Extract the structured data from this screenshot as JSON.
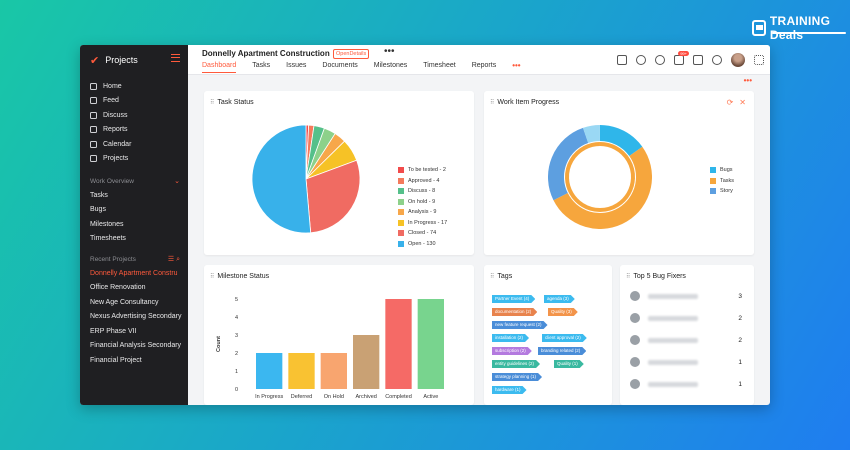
{
  "brand": {
    "name_bold": "TRAINING",
    "name_rest": " Deals"
  },
  "sidebar": {
    "app_title": "Projects",
    "nav": [
      {
        "label": "Home"
      },
      {
        "label": "Feed"
      },
      {
        "label": "Discuss"
      },
      {
        "label": "Reports"
      },
      {
        "label": "Calendar"
      },
      {
        "label": "Projects"
      }
    ],
    "work_overview": {
      "title": "Work Overview",
      "items": [
        "Tasks",
        "Bugs",
        "Milestones",
        "Timesheets"
      ]
    },
    "recent": {
      "title": "Recent Projects",
      "items": [
        "Donnelly Apartment Constru",
        "Office Renovation",
        "New Age Consultancy",
        "Nexus Advertising Secondary",
        "ERP Phase VII",
        "Financial Analysis Secondary",
        "Financial  Project"
      ]
    }
  },
  "header": {
    "project_title": "Donnelly Apartment Construction",
    "badge": "OpenDetails",
    "more": "•••",
    "tabs": [
      "Dashboard",
      "Tasks",
      "Issues",
      "Documents",
      "Milestones",
      "Timesheet",
      "Reports"
    ],
    "tab_more": "•••",
    "notif_count": "99+",
    "page_more": "•••"
  },
  "task_status": {
    "title": "Task Status",
    "legend": [
      {
        "label": "To be tested - 2",
        "value": 2,
        "color": "#f24b4b"
      },
      {
        "label": "Approved - 4",
        "value": 4,
        "color": "#f47a5c"
      },
      {
        "label": "Discuss - 8",
        "value": 8,
        "color": "#55c08a"
      },
      {
        "label": "On hold - 9",
        "value": 9,
        "color": "#8dd18a"
      },
      {
        "label": "Analysis - 9",
        "value": 9,
        "color": "#f7a74a"
      },
      {
        "label": "In Progress - 17",
        "value": 17,
        "color": "#f6c226"
      },
      {
        "label": "Closed - 74",
        "value": 74,
        "color": "#f06b62"
      },
      {
        "label": "Open - 130",
        "value": 130,
        "color": "#38b1ea"
      }
    ]
  },
  "work_item": {
    "title": "Work Item Progress",
    "legend": [
      {
        "label": "Bugs",
        "color": "#2fb6ea"
      },
      {
        "label": "Tasks",
        "color": "#f6a63d"
      },
      {
        "label": "Story",
        "color": "#5d9fe0"
      }
    ]
  },
  "milestone": {
    "title": "Milestone Status",
    "ylabel": "Count",
    "yticks": [
      "5",
      "4",
      "3",
      "2",
      "1",
      "0"
    ]
  },
  "chart_data": {
    "type": "bar",
    "categories": [
      "In Progress",
      "Deferred",
      "On Hold",
      "Archived",
      "Completed",
      "Active"
    ],
    "values": [
      2,
      2,
      2,
      3,
      5,
      5
    ],
    "colors": [
      "#3bb7f0",
      "#f9c232",
      "#f8a56f",
      "#c9a174",
      "#f56a66",
      "#78d48e"
    ],
    "ylabel": "Count",
    "ylim": [
      0,
      5
    ]
  },
  "tags": {
    "title": "Tags",
    "items": [
      {
        "label": "Partner Event (4)",
        "color": "#3cbbef"
      },
      {
        "label": "agenda (3)",
        "color": "#3cbbef"
      },
      {
        "label": "documentation (2)",
        "color": "#e8834d"
      },
      {
        "label": "Quality (3)",
        "color": "#f3944a"
      },
      {
        "label": "new feature request (2)",
        "color": "#4a8dd8"
      },
      {
        "label": "installation (2)",
        "color": "#3cbbef"
      },
      {
        "label": "client approval (2)",
        "color": "#3cbbef"
      },
      {
        "label": "subscription (2)",
        "color": "#b47adf"
      },
      {
        "label": "branding related (2)",
        "color": "#4a8dd8"
      },
      {
        "label": "entity guidelines (2)",
        "color": "#3ab9a0"
      },
      {
        "label": "Quality (1)",
        "color": "#3ab9a0"
      },
      {
        "label": "strategy planning (1)",
        "color": "#4a8dd8"
      },
      {
        "label": "hardware (1)",
        "color": "#3cbbef"
      }
    ]
  },
  "bug_fixers": {
    "title": "Top 5 Bug Fixers",
    "rows": [
      {
        "count": "3"
      },
      {
        "count": "2"
      },
      {
        "count": "2"
      },
      {
        "count": "1"
      },
      {
        "count": "1"
      }
    ]
  }
}
